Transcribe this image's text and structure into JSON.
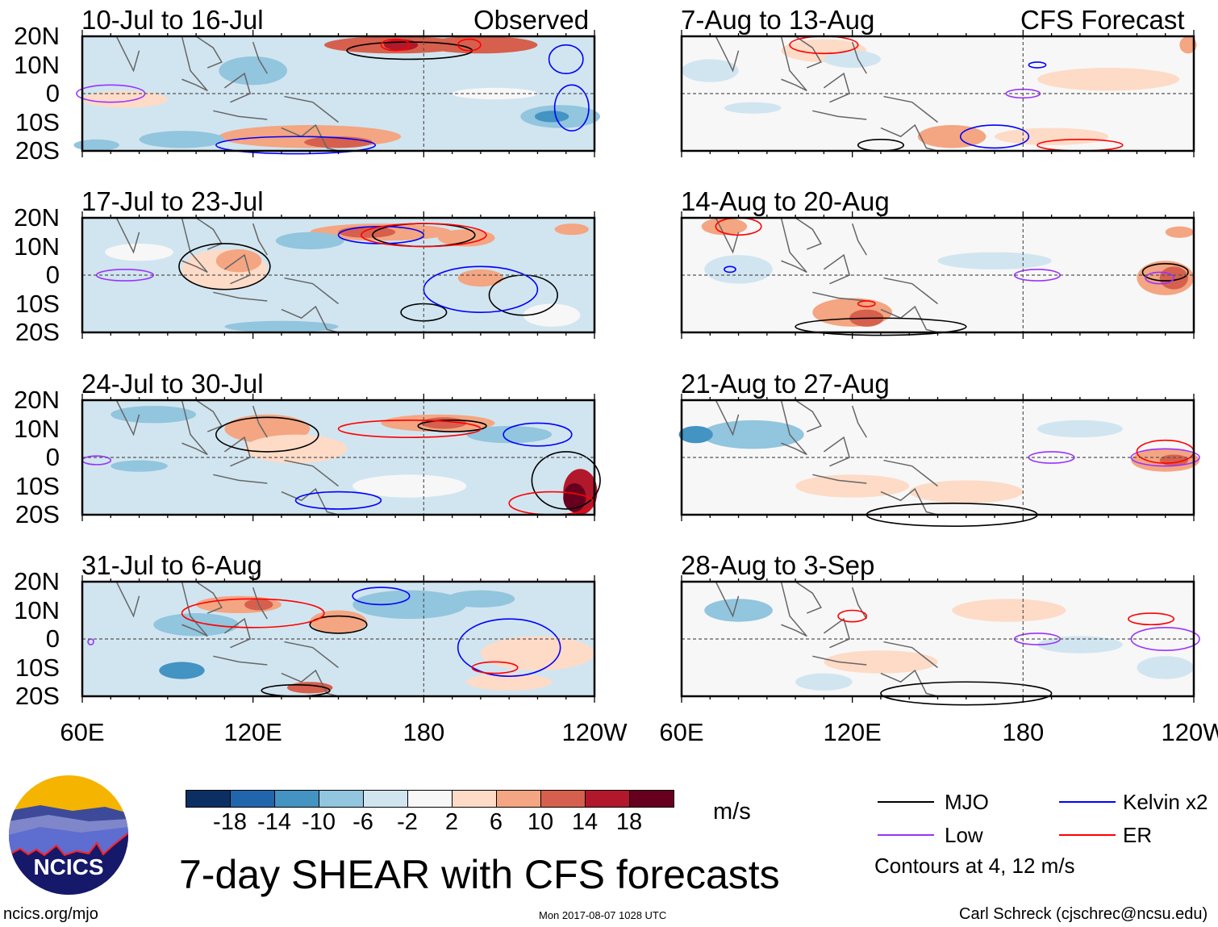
{
  "figure_title": "7-day SHEAR with CFS forecasts",
  "chart_data": {
    "type": "heatmap",
    "title": "7-day SHEAR with CFS forecasts",
    "columns": [
      {
        "label": "Observed",
        "panels": [
          "10-Jul to 16-Jul",
          "17-Jul to 23-Jul",
          "24-Jul to 30-Jul",
          "31-Jul to 6-Aug"
        ]
      },
      {
        "label": "CFS Forecast",
        "panels": [
          "7-Aug to 13-Aug",
          "14-Aug to 20-Aug",
          "21-Aug to 27-Aug",
          "28-Aug to 3-Sep"
        ]
      }
    ],
    "lat_ticks": [
      "20N",
      "10N",
      "0",
      "10S",
      "20S"
    ],
    "lon_ticks": [
      "60E",
      "120E",
      "180",
      "120W"
    ],
    "lat_range": [
      -20,
      20
    ],
    "lon_range": [
      60,
      240
    ],
    "colorbar": {
      "unit": "m/s",
      "levels": [
        "-18",
        "-14",
        "-10",
        "-6",
        "-2",
        "2",
        "6",
        "10",
        "14",
        "18"
      ],
      "colors": [
        "#0b2f63",
        "#2166ac",
        "#4393c3",
        "#92c5de",
        "#d1e5f0",
        "#f7f7f7",
        "#fddbc7",
        "#f4a582",
        "#d6604d",
        "#b2182b",
        "#67001f"
      ]
    },
    "legend": [
      {
        "label": "MJO",
        "color": "#000000"
      },
      {
        "label": "Kelvin x2",
        "color": "#0000ff"
      },
      {
        "label": "Low",
        "color": "#9933ff"
      },
      {
        "label": "ER",
        "color": "#ff0000"
      }
    ],
    "contour_note": "Contours at 4, 12 m/s"
  },
  "footer": {
    "logo_text": "NCICS",
    "url": "ncics.org/mjo",
    "timestamp": "Mon 2017-08-07 1028 UTC",
    "credit": "Carl Schreck (cjschrec@ncsu.edu)"
  }
}
